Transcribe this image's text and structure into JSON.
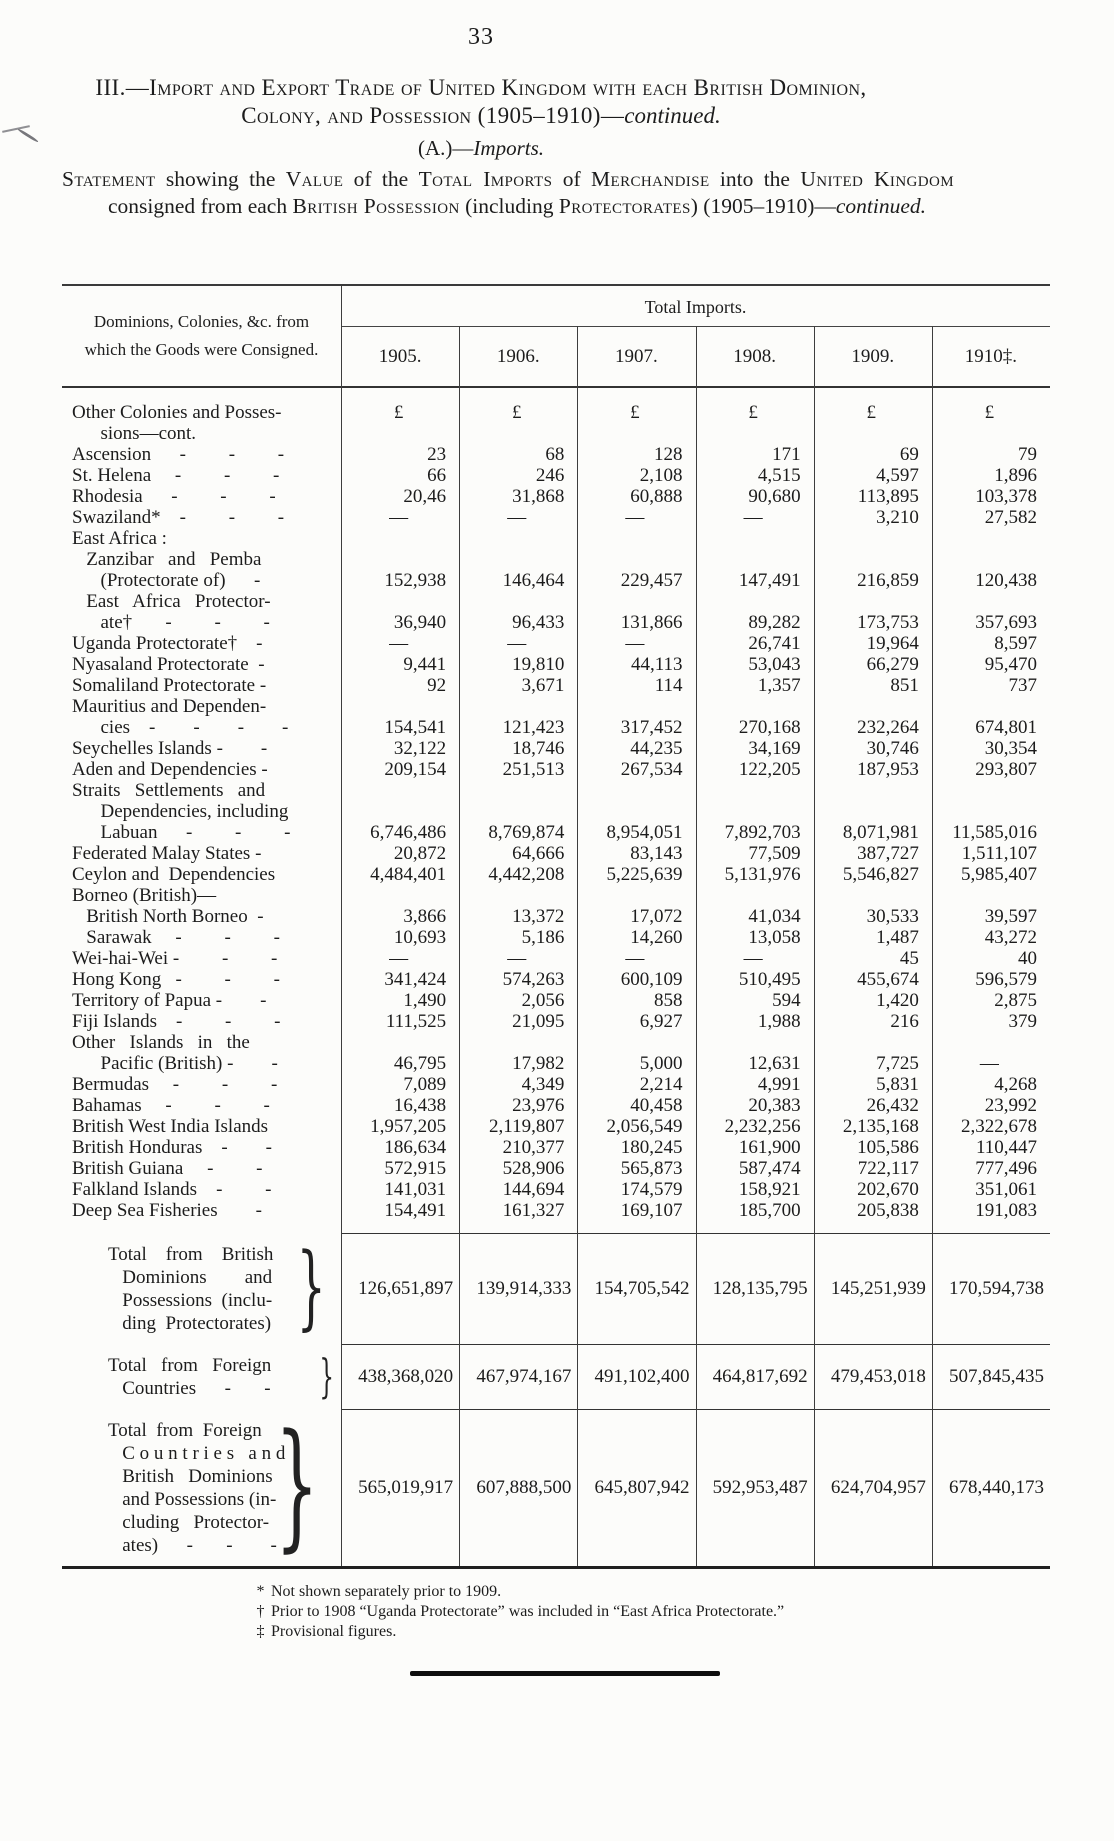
{
  "page_number": "33",
  "header": {
    "title_line1": [
      {
        "t": "III.—Import and Export Trade of United Kingdom with each British Dominion,",
        "s": "sc"
      }
    ],
    "title_line2": [
      {
        "t": "Colony, and Possession (1905–1910)—",
        "s": "sc"
      },
      {
        "t": "continued.",
        "s": "i"
      }
    ],
    "section_heading": [
      {
        "t": "(A.)—",
        "s": ""
      },
      {
        "t": "Imports.",
        "s": "i"
      }
    ],
    "statement": [
      {
        "t": "Statement",
        "s": "sc"
      },
      {
        "t": " showing the ",
        "s": ""
      },
      {
        "t": "Value",
        "s": "sc"
      },
      {
        "t": " of the ",
        "s": ""
      },
      {
        "t": "Total Imports",
        "s": "sc"
      },
      {
        "t": " of ",
        "s": ""
      },
      {
        "t": "Merchandise",
        "s": "sc"
      },
      {
        "t": " into the ",
        "s": ""
      },
      {
        "t": "United Kingdom",
        "s": "sc"
      },
      {
        "t": " consigned from each ",
        "s": ""
      },
      {
        "t": "British Possession",
        "s": "sc"
      },
      {
        "t": " (including ",
        "s": ""
      },
      {
        "t": "Protectorates",
        "s": "sc"
      },
      {
        "t": ") (1905–1910)—",
        "s": ""
      },
      {
        "t": "continued.",
        "s": "i"
      }
    ]
  },
  "table": {
    "left_header_line1": "Dominions, Colonies, &c. from",
    "left_header_line2": "which the Goods were Consigned.",
    "group_header": "Total Imports.",
    "year_headers": [
      "1905.",
      "1906.",
      "1907.",
      "1908.",
      "1909.",
      "1910‡."
    ],
    "rows": [
      {
        "label_lines": [
          "Other Colonies and Posses-",
          "      sions—cont."
        ],
        "values": [
          "£",
          "£",
          "£",
          "£",
          "£",
          "£"
        ],
        "align": "top"
      },
      {
        "label_lines": [
          "Ascension      -         -         -"
        ],
        "values": [
          "23",
          "68",
          "128",
          "171",
          "69",
          "79"
        ]
      },
      {
        "label_lines": [
          "St. Helena     -         -         -"
        ],
        "values": [
          "66",
          "246",
          "2,108",
          "4,515",
          "4,597",
          "1,896"
        ]
      },
      {
        "label_lines": [
          "Rhodesia      -         -         -"
        ],
        "values": [
          "20,46",
          "31,868",
          "60,888",
          "90,680",
          "113,895",
          "103,378"
        ]
      },
      {
        "label_lines": [
          "Swaziland*    -         -         -"
        ],
        "values": [
          "—",
          "—",
          "—",
          "—",
          "3,210",
          "27,582"
        ]
      },
      {
        "label_lines": [
          "East Africa :"
        ],
        "values": null
      },
      {
        "label_lines": [
          "   Zanzibar   and   Pemba",
          "      (Protectorate of)      -"
        ],
        "values": [
          "152,938",
          "146,464",
          "229,457",
          "147,491",
          "216,859",
          "120,438"
        ]
      },
      {
        "label_lines": [
          "   East   Africa   Protector-",
          "      ate†       -         -         -"
        ],
        "values": [
          "36,940",
          "96,433",
          "131,866",
          "89,282",
          "173,753",
          "357,693"
        ]
      },
      {
        "label_lines": [
          "Uganda Protectorate†    -"
        ],
        "values": [
          "—",
          "—",
          "—",
          "26,741",
          "19,964",
          "8,597"
        ]
      },
      {
        "label_lines": [
          "Nyasaland Protectorate  -"
        ],
        "values": [
          "9,441",
          "19,810",
          "44,113",
          "53,043",
          "66,279",
          "95,470"
        ]
      },
      {
        "label_lines": [
          "Somaliland Protectorate -"
        ],
        "values": [
          "92",
          "3,671",
          "114",
          "1,357",
          "851",
          "737"
        ]
      },
      {
        "label_lines": [
          "Mauritius and Dependen-",
          "      cies    -        -        -        -"
        ],
        "values": [
          "154,541",
          "121,423",
          "317,452",
          "270,168",
          "232,264",
          "674,801"
        ]
      },
      {
        "label_lines": [
          "Seychelles Islands -        -"
        ],
        "values": [
          "32,122",
          "18,746",
          "44,235",
          "34,169",
          "30,746",
          "30,354"
        ]
      },
      {
        "label_lines": [
          "Aden and Dependencies -"
        ],
        "values": [
          "209,154",
          "251,513",
          "267,534",
          "122,205",
          "187,953",
          "293,807"
        ]
      },
      {
        "label_lines": [
          "Straits   Settlements   and",
          "      Dependencies, including",
          "      Labuan      -         -         -"
        ],
        "values": [
          "6,746,486",
          "8,769,874",
          "8,954,051",
          "7,892,703",
          "8,071,981",
          "11,585,016"
        ]
      },
      {
        "label_lines": [
          "Federated Malay States -"
        ],
        "values": [
          "20,872",
          "64,666",
          "83,143",
          "77,509",
          "387,727",
          "1,511,107"
        ]
      },
      {
        "label_lines": [
          "Ceylon and  Dependencies"
        ],
        "values": [
          "4,484,401",
          "4,442,208",
          "5,225,639",
          "5,131,976",
          "5,546,827",
          "5,985,407"
        ]
      },
      {
        "label_lines": [
          "Borneo (British)—"
        ],
        "values": null
      },
      {
        "label_lines": [
          "   British North Borneo  -"
        ],
        "values": [
          "3,866",
          "13,372",
          "17,072",
          "41,034",
          "30,533",
          "39,597"
        ]
      },
      {
        "label_lines": [
          "   Sarawak     -         -         -"
        ],
        "values": [
          "10,693",
          "5,186",
          "14,260",
          "13,058",
          "1,487",
          "43,272"
        ]
      },
      {
        "label_lines": [
          "Wei-hai-Wei -         -         -"
        ],
        "values": [
          "—",
          "—",
          "—",
          "—",
          "45",
          "40"
        ]
      },
      {
        "label_lines": [
          "Hong Kong   -         -         -"
        ],
        "values": [
          "341,424",
          "574,263",
          "600,109",
          "510,495",
          "455,674",
          "596,579"
        ]
      },
      {
        "label_lines": [
          "Territory of Papua -        -"
        ],
        "values": [
          "1,490",
          "2,056",
          "858",
          "594",
          "1,420",
          "2,875"
        ]
      },
      {
        "label_lines": [
          "Fiji Islands    -         -         -"
        ],
        "values": [
          "111,525",
          "21,095",
          "6,927",
          "1,988",
          "216",
          "379"
        ]
      },
      {
        "label_lines": [
          "Other   Islands   in   the",
          "      Pacific (British) -        -"
        ],
        "values": [
          "46,795",
          "17,982",
          "5,000",
          "12,631",
          "7,725",
          "—"
        ]
      },
      {
        "label_lines": [
          "Bermudas     -         -         -"
        ],
        "values": [
          "7,089",
          "4,349",
          "2,214",
          "4,991",
          "5,831",
          "4,268"
        ]
      },
      {
        "label_lines": [
          "Bahamas     -         -         -"
        ],
        "values": [
          "16,438",
          "23,976",
          "40,458",
          "20,383",
          "26,432",
          "23,992"
        ]
      },
      {
        "label_lines": [
          "British West India Islands"
        ],
        "values": [
          "1,957,205",
          "2,119,807",
          "2,056,549",
          "2,232,256",
          "2,135,168",
          "2,322,678"
        ]
      },
      {
        "label_lines": [
          "British Honduras    -        -"
        ],
        "values": [
          "186,634",
          "210,377",
          "180,245",
          "161,900",
          "105,586",
          "110,447"
        ]
      },
      {
        "label_lines": [
          "British Guiana     -         -"
        ],
        "values": [
          "572,915",
          "528,906",
          "565,873",
          "587,474",
          "722,117",
          "777,496"
        ]
      },
      {
        "label_lines": [
          "Falkland Islands    -         -"
        ],
        "values": [
          "141,031",
          "144,694",
          "174,579",
          "158,921",
          "202,670",
          "351,061"
        ]
      },
      {
        "label_lines": [
          "Deep Sea Fisheries        -"
        ],
        "values": [
          "154,491",
          "161,327",
          "169,107",
          "185,700",
          "205,838",
          "191,083"
        ]
      }
    ],
    "totals": [
      {
        "label_lines": [
          "Total    from    British",
          "   Dominions        and",
          "   Possessions  (inclu-",
          "   ding  Protectorates)"
        ],
        "values": [
          "126,651,897",
          "139,914,333",
          "154,705,542",
          "128,135,795",
          "145,251,939",
          "170,594,738"
        ]
      },
      {
        "label_lines": [
          "Total   from   Foreign",
          "   Countries      -       -"
        ],
        "values": [
          "438,368,020",
          "467,974,167",
          "491,102,400",
          "464,817,692",
          "479,453,018",
          "507,845,435"
        ]
      },
      {
        "label_lines": [
          "Total  from  Foreign",
          "   C o u n t r i e s   a n d",
          "   British   Dominions",
          "   and Possessions (in-",
          "   cluding   Protector-",
          "   ates)      -       -        -"
        ],
        "values": [
          "565,019,917",
          "607,888,500",
          "645,807,942",
          "592,953,487",
          "624,704,957",
          "678,440,173"
        ]
      }
    ]
  },
  "footnotes": [
    {
      "marker": "*",
      "text": "Not shown separately prior to 1909."
    },
    {
      "marker": "†",
      "text": "Prior to 1908 “Uganda Protectorate” was included in “East Africa Protectorate.”"
    },
    {
      "marker": "‡",
      "text": "Provisional figures."
    }
  ]
}
